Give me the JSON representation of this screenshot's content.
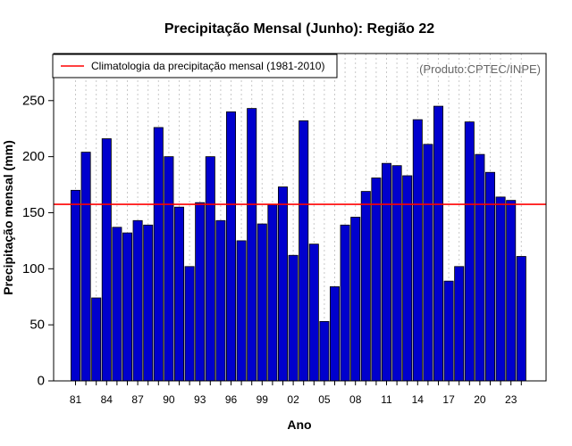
{
  "chart_data": {
    "type": "bar",
    "title": "Precipitação Mensal (Junho): Região 22",
    "xlabel": "Ano",
    "ylabel": "Precipitação mensal (mm)",
    "ylim": [
      0,
      292
    ],
    "yticks": [
      0,
      50,
      100,
      150,
      200,
      250
    ],
    "years": [
      1981,
      1982,
      1983,
      1984,
      1985,
      1986,
      1987,
      1988,
      1989,
      1990,
      1991,
      1992,
      1993,
      1994,
      1995,
      1996,
      1997,
      1998,
      1999,
      2000,
      2001,
      2002,
      2003,
      2004,
      2005,
      2006,
      2007,
      2008,
      2009,
      2010,
      2011,
      2012,
      2013,
      2014,
      2015,
      2016,
      2017,
      2018,
      2019,
      2020,
      2021,
      2022,
      2023,
      2024
    ],
    "values": [
      170,
      204,
      74,
      216,
      137,
      132,
      143,
      139,
      226,
      200,
      155,
      102,
      159,
      200,
      143,
      240,
      125,
      243,
      140,
      157,
      173,
      112,
      232,
      122,
      53,
      84,
      139,
      146,
      169,
      181,
      194,
      192,
      183,
      233,
      211,
      245,
      89,
      102,
      231,
      202,
      186,
      164,
      161,
      111
    ],
    "tick_labels": [
      {
        "year": 1981,
        "label": "81"
      },
      {
        "year": 1984,
        "label": "84"
      },
      {
        "year": 1987,
        "label": "87"
      },
      {
        "year": 1990,
        "label": "90"
      },
      {
        "year": 1993,
        "label": "93"
      },
      {
        "year": 1996,
        "label": "96"
      },
      {
        "year": 1999,
        "label": "99"
      },
      {
        "year": 2002,
        "label": "02"
      },
      {
        "year": 2005,
        "label": "05"
      },
      {
        "year": 2008,
        "label": "08"
      },
      {
        "year": 2011,
        "label": "11"
      },
      {
        "year": 2014,
        "label": "14"
      },
      {
        "year": 2017,
        "label": "17"
      },
      {
        "year": 2020,
        "label": "20"
      },
      {
        "year": 2023,
        "label": "23"
      }
    ],
    "climatology": {
      "value": 157.5,
      "label": "Climatologia da precipitação mensal (1981-2010)"
    },
    "source_note": "(Produto:CPTEC/INPE)",
    "grid": "vertical-dotted",
    "legend_position": "top-left",
    "colors": {
      "bar": "#0000cd",
      "bar_border": "#000000",
      "climatology": "#ff0000",
      "grid": "#c8c8c8",
      "note": "#666666"
    }
  }
}
